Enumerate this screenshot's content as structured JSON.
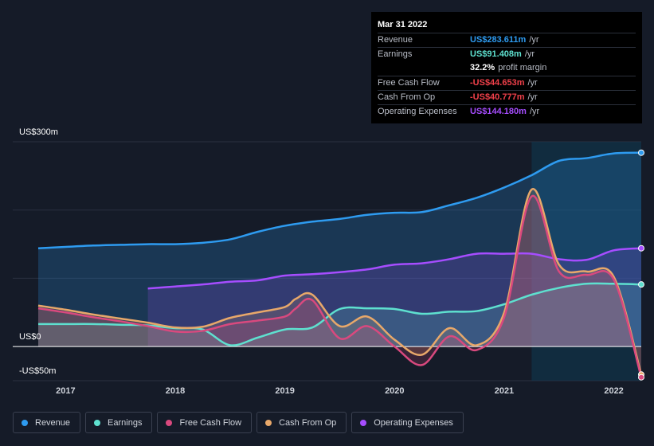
{
  "tooltip": {
    "date": "Mar 31 2022",
    "rows": [
      {
        "label": "Revenue",
        "value": "US$283.611m",
        "unit": "/yr",
        "color": "#2e9bf0"
      },
      {
        "label": "Earnings",
        "value": "US$91.408m",
        "unit": "/yr",
        "color": "#5ee0cf"
      },
      {
        "label": "",
        "value": "32.2%",
        "unit": "profit margin",
        "color": "#ffffff"
      },
      {
        "label": "Free Cash Flow",
        "value": "-US$44.653m",
        "unit": "/yr",
        "color": "#f0404a"
      },
      {
        "label": "Cash From Op",
        "value": "-US$40.777m",
        "unit": "/yr",
        "color": "#f0404a"
      },
      {
        "label": "Operating Expenses",
        "value": "US$144.180m",
        "unit": "/yr",
        "color": "#a64dff"
      }
    ]
  },
  "axis": {
    "y_top": "US$300m",
    "y_zero": "US$0",
    "y_bottom": "-US$50m"
  },
  "legend": [
    {
      "label": "Revenue",
      "color": "#2e9bf0"
    },
    {
      "label": "Earnings",
      "color": "#5ee0cf"
    },
    {
      "label": "Free Cash Flow",
      "color": "#d9497e"
    },
    {
      "label": "Cash From Op",
      "color": "#e8a86a"
    },
    {
      "label": "Operating Expenses",
      "color": "#a64dff"
    }
  ],
  "chart_data": {
    "type": "area",
    "title": "",
    "ylim": [
      -50,
      300
    ],
    "xlim": [
      2016.75,
      2022.25
    ],
    "x_ticks": [
      "2017",
      "2018",
      "2019",
      "2020",
      "2021",
      "2022"
    ],
    "x_tick_values": [
      2017,
      2018,
      2019,
      2020,
      2021,
      2022
    ],
    "highlight_start": 2021.25,
    "series": [
      {
        "name": "Revenue",
        "color": "#2e9bf0",
        "x": [
          2016.75,
          2017.0,
          2017.25,
          2017.5,
          2017.75,
          2018.0,
          2018.25,
          2018.5,
          2018.75,
          2019.0,
          2019.25,
          2019.5,
          2019.75,
          2020.0,
          2020.25,
          2020.5,
          2020.75,
          2021.0,
          2021.25,
          2021.5,
          2021.75,
          2022.0,
          2022.25
        ],
        "values": [
          144,
          146,
          148,
          149,
          150,
          150,
          152,
          157,
          168,
          177,
          183,
          187,
          193,
          196,
          197,
          207,
          218,
          233,
          251,
          272,
          276,
          283,
          284
        ]
      },
      {
        "name": "Earnings",
        "color": "#5ee0cf",
        "x": [
          2016.75,
          2017.0,
          2017.25,
          2017.5,
          2017.75,
          2018.0,
          2018.25,
          2018.5,
          2018.75,
          2019.0,
          2019.25,
          2019.5,
          2019.75,
          2020.0,
          2020.25,
          2020.5,
          2020.75,
          2021.0,
          2021.25,
          2021.5,
          2021.75,
          2022.0,
          2022.25
        ],
        "values": [
          33,
          33,
          33,
          32,
          31,
          27,
          25,
          2,
          13,
          25,
          28,
          55,
          56,
          55,
          48,
          51,
          52,
          62,
          76,
          86,
          92,
          92,
          91
        ]
      },
      {
        "name": "Free Cash Flow",
        "color": "#d9497e",
        "x": [
          2016.75,
          2017.0,
          2017.25,
          2017.5,
          2017.75,
          2018.0,
          2018.25,
          2018.5,
          2018.75,
          2019.0,
          2019.1,
          2019.25,
          2019.5,
          2019.75,
          2020.0,
          2020.25,
          2020.5,
          2020.75,
          2021.0,
          2021.25,
          2021.5,
          2021.75,
          2022.0,
          2022.25
        ],
        "values": [
          56,
          50,
          43,
          37,
          30,
          22,
          23,
          33,
          38,
          44,
          56,
          68,
          12,
          30,
          0,
          -27,
          15,
          -5,
          43,
          220,
          110,
          105,
          98,
          -45
        ]
      },
      {
        "name": "Cash From Op",
        "color": "#e8a86a",
        "x": [
          2016.75,
          2017.0,
          2017.25,
          2017.5,
          2017.75,
          2018.0,
          2018.25,
          2018.5,
          2018.75,
          2019.0,
          2019.1,
          2019.25,
          2019.5,
          2019.75,
          2020.0,
          2020.25,
          2020.5,
          2020.75,
          2021.0,
          2021.25,
          2021.5,
          2021.75,
          2022.0,
          2022.25
        ],
        "values": [
          60,
          54,
          47,
          41,
          35,
          28,
          29,
          42,
          50,
          58,
          70,
          76,
          30,
          44,
          10,
          -12,
          27,
          2,
          50,
          230,
          120,
          110,
          102,
          -41
        ]
      },
      {
        "name": "Operating Expenses",
        "color": "#a64dff",
        "x": [
          2017.75,
          2018.0,
          2018.25,
          2018.5,
          2018.75,
          2019.0,
          2019.25,
          2019.5,
          2019.75,
          2020.0,
          2020.25,
          2020.5,
          2020.75,
          2021.0,
          2021.25,
          2021.5,
          2021.75,
          2022.0,
          2022.25
        ],
        "values": [
          85,
          88,
          91,
          95,
          97,
          104,
          106,
          109,
          113,
          120,
          122,
          128,
          136,
          136,
          136,
          128,
          127,
          141,
          144
        ]
      }
    ]
  }
}
